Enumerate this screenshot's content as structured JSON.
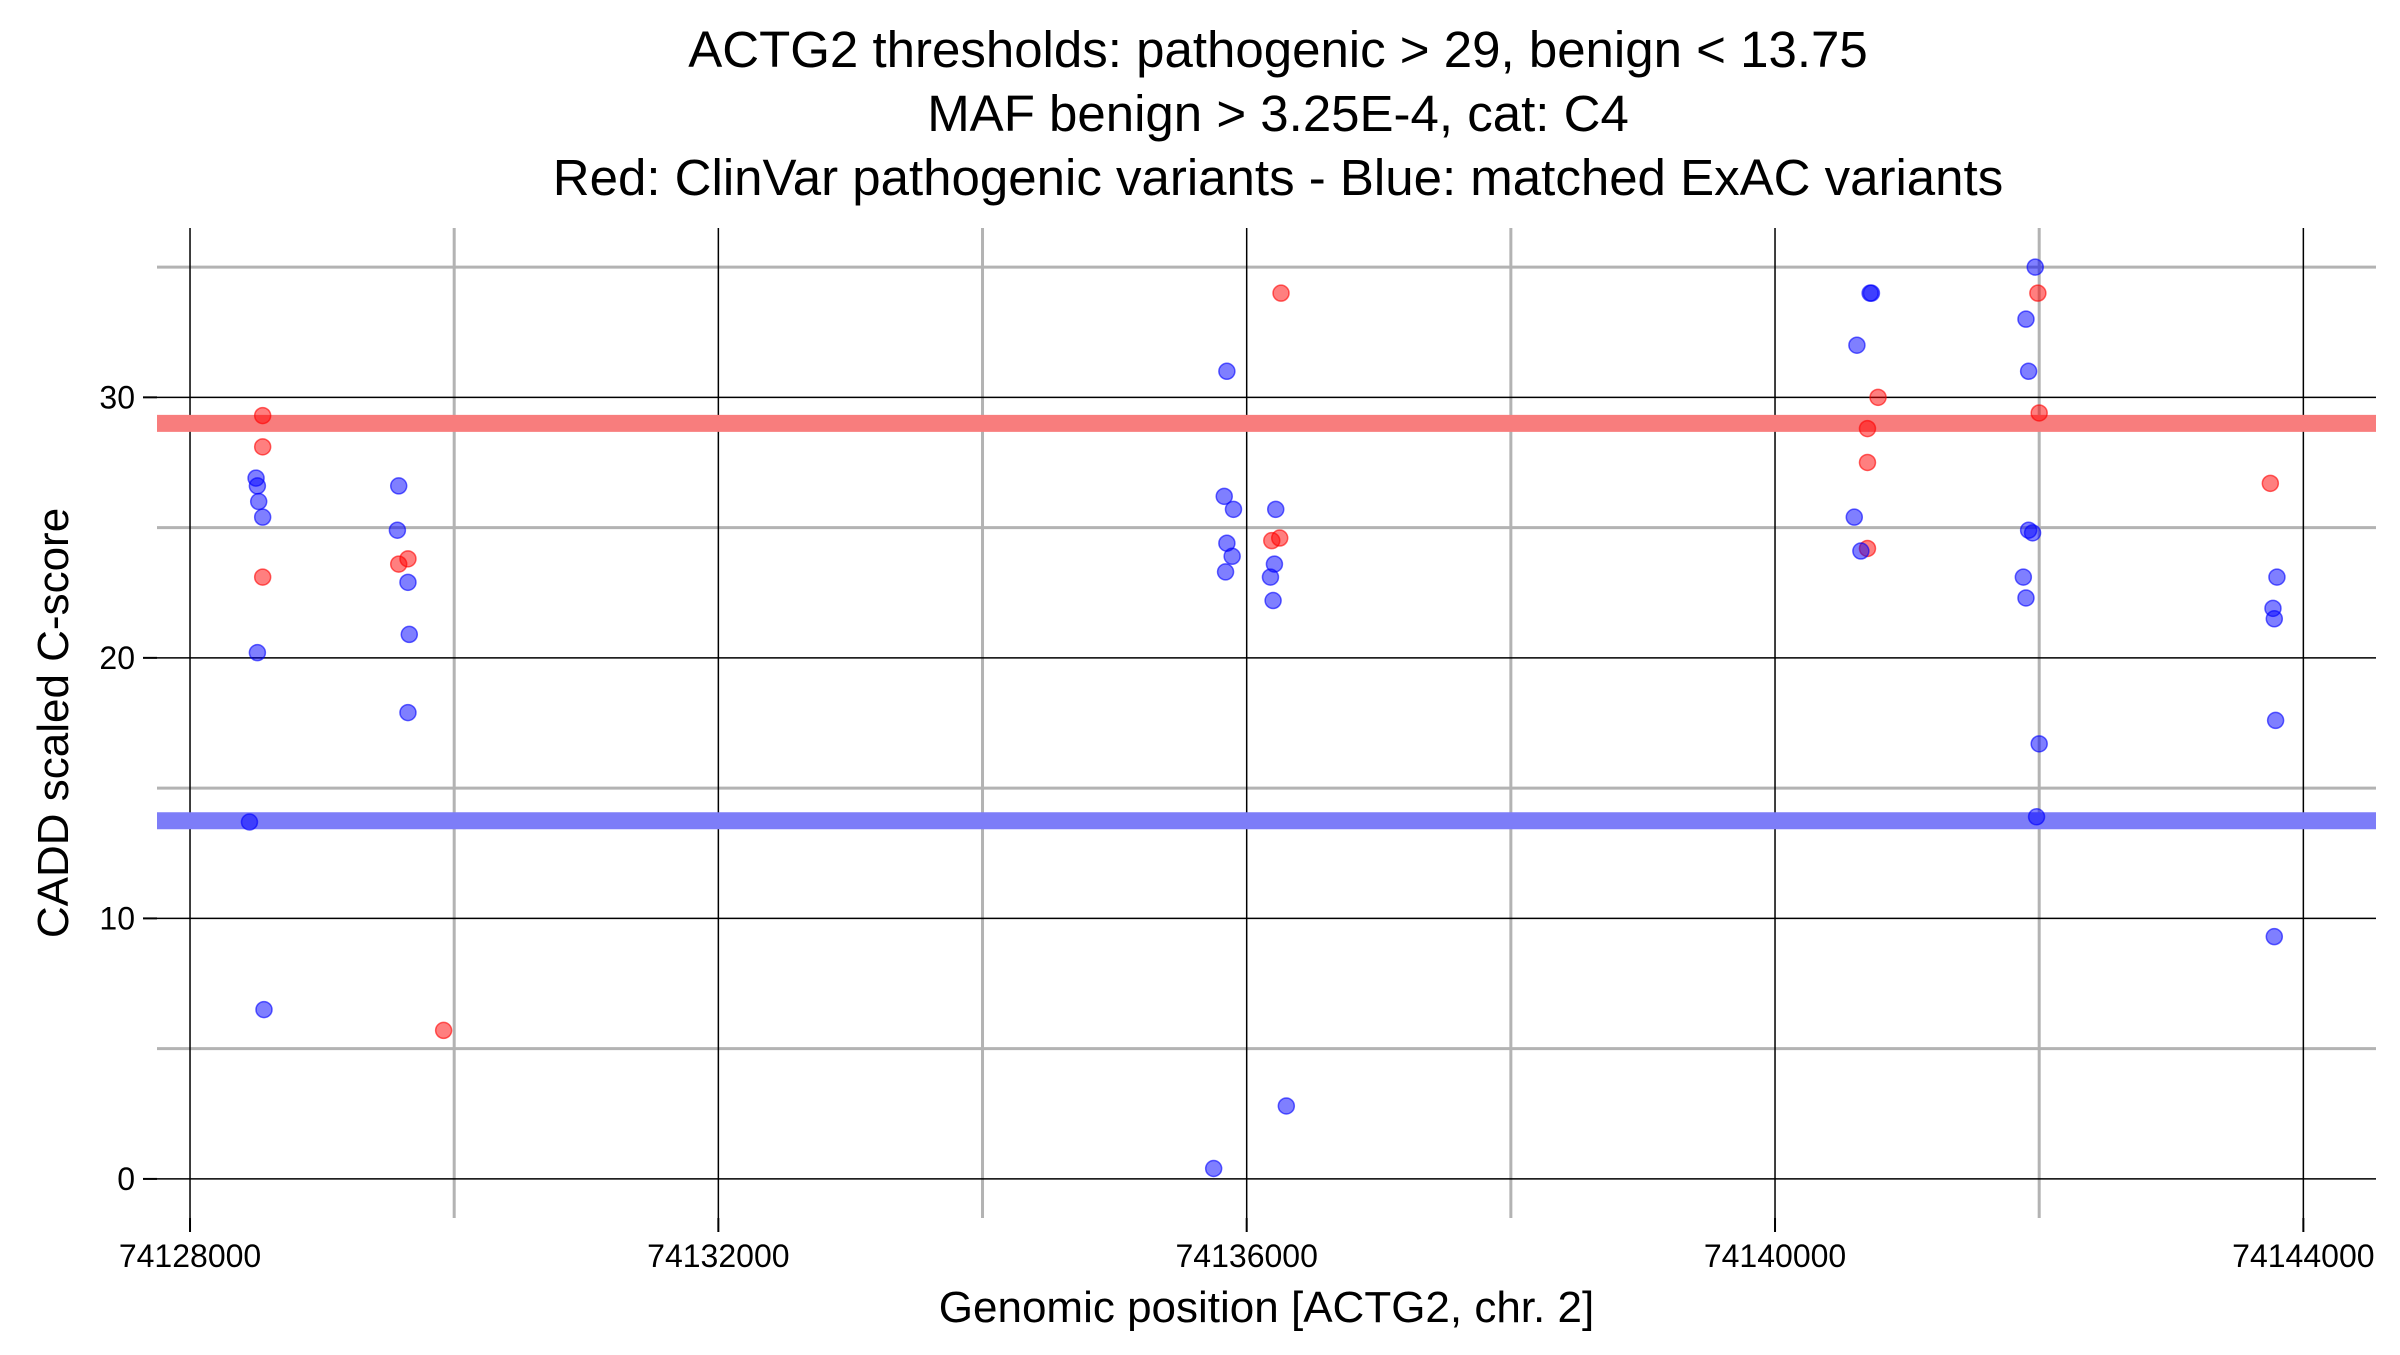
{
  "chart_data": {
    "type": "scatter",
    "title": [
      "ACTG2 thresholds: pathogenic > 29, benign < 13.75",
      "MAF benign > 3.25E-4, cat: C4",
      "Red: ClinVar pathogenic variants - Blue: matched ExAC variants"
    ],
    "xlabel": "Genomic position [ACTG2, chr. 2]",
    "ylabel": "CADD scaled C-score",
    "xlim": [
      74127750,
      74144550
    ],
    "ylim": [
      -1.5,
      36.5
    ],
    "x_ticks": [
      74128000,
      74132000,
      74136000,
      74140000,
      74144000
    ],
    "x_tick_labels": [
      "74128000",
      "74132000",
      "74136000",
      "74140000",
      "74144000"
    ],
    "y_ticks": [
      0,
      10,
      20,
      30
    ],
    "y_tick_labels": [
      "0",
      "10",
      "20",
      "30"
    ],
    "grid": true,
    "legend": "none",
    "thresholds": [
      {
        "value": 29,
        "color": "#f87d7d"
      },
      {
        "value": 13.75,
        "color": "#7d7df8"
      }
    ],
    "series": [
      {
        "color": "#ff0000",
        "x": [
          74128550,
          74128550,
          74128550,
          74129580,
          74129650,
          74129920,
          74136190,
          74136250,
          74136260,
          74140700,
          74140700,
          74140700,
          74140780,
          74141990,
          74142000,
          74143750
        ],
        "y": [
          29.3,
          28.1,
          23.1,
          23.6,
          23.8,
          5.7,
          24.5,
          24.6,
          34.0,
          28.8,
          27.5,
          24.2,
          30.0,
          34.0,
          29.4,
          26.7
        ]
      },
      {
        "color": "#0000ff",
        "x": [
          74128500,
          74128510,
          74128520,
          74128550,
          74128510,
          74128450,
          74128560,
          74129580,
          74129570,
          74129650,
          74129660,
          74129650,
          74135850,
          74135830,
          74135900,
          74135850,
          74135890,
          74135840,
          74135750,
          74136220,
          74136210,
          74136180,
          74136200,
          74136300,
          74140620,
          74140600,
          74140650,
          74140720,
          74140730,
          74141970,
          74141900,
          74141920,
          74141950,
          74141920,
          74141880,
          74141900,
          74142000,
          74141980,
          74143800,
          74143770,
          74143780,
          74143790,
          74143780
        ],
        "y": [
          26.9,
          26.6,
          26.0,
          25.4,
          20.2,
          13.7,
          6.5,
          26.6,
          24.9,
          22.9,
          20.9,
          17.9,
          31.0,
          26.2,
          25.7,
          24.4,
          23.9,
          23.3,
          0.4,
          25.7,
          23.6,
          23.1,
          22.2,
          2.8,
          32.0,
          25.4,
          24.1,
          34.0,
          34.0,
          35.0,
          33.0,
          31.0,
          24.8,
          24.9,
          23.1,
          22.3,
          16.7,
          13.9,
          23.1,
          21.9,
          21.5,
          17.6,
          9.3
        ]
      }
    ]
  }
}
